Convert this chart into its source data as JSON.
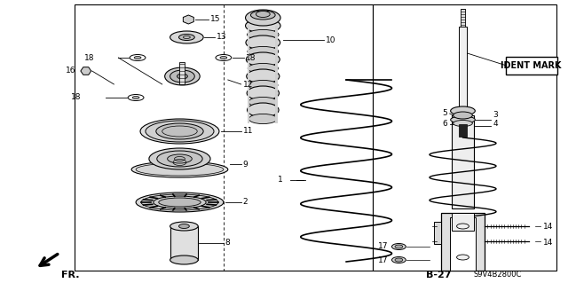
{
  "bg_color": "#ffffff",
  "border_color": "#000000",
  "ident_mark_text": "IDENT MARK",
  "b27_text": "B-27",
  "s9v_text": "S9V4B2800C",
  "fr_arrow_text": "FR."
}
